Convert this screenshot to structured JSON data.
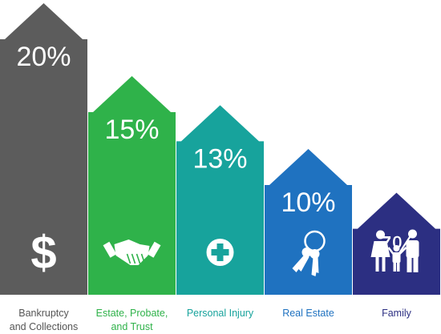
{
  "chart_data": {
    "type": "bar",
    "title": "",
    "xlabel": "",
    "ylabel": "",
    "categories": [
      [
        "Bankruptcy",
        "and Collections"
      ],
      [
        "Estate, Probate,",
        "and Trust"
      ],
      [
        "Personal Injury"
      ],
      [
        "Real Estate"
      ],
      [
        "Family"
      ]
    ],
    "values": [
      20,
      15,
      13,
      10,
      7
    ],
    "value_labels": [
      "20%",
      "15%",
      "13%",
      "10%",
      "7%"
    ],
    "unit": "%",
    "ylim": [
      0,
      22
    ],
    "grid": false,
    "colors": [
      "#5c5c5c",
      "#2fb24a",
      "#17a39c",
      "#1f72c0",
      "#2c2f82"
    ],
    "label_colors": [
      "#555555",
      "#2fb24a",
      "#17a39c",
      "#1f72c0",
      "#2c2f82"
    ],
    "icons": [
      "dollar-sign-icon",
      "handshake-icon",
      "medical-cross-icon",
      "keys-icon",
      "family-icon"
    ]
  }
}
